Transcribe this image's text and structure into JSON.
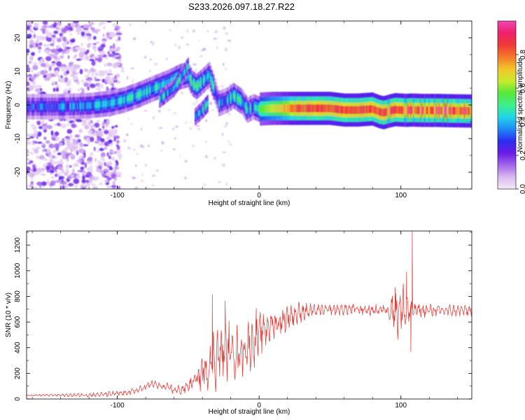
{
  "title": "S233.2026.097.18.27.R22",
  "chart_data": [
    {
      "type": "heatmap",
      "name": "spectrogram",
      "xlabel": "Height of straight line (km)",
      "ylabel": "Frequency (Hz)",
      "xlim": [
        -164,
        150
      ],
      "ylim": [
        -25,
        25
      ],
      "xticks": [
        -100,
        0,
        100
      ],
      "xtick_labels": [
        "-100",
        "0",
        "100"
      ],
      "yticks": [
        -20,
        -10,
        0,
        10,
        20
      ],
      "ytick_labels": [
        "-20",
        "-10",
        "0",
        "10",
        "20"
      ],
      "colorbar": {
        "label": "Normalized spectral amplitude",
        "range": [
          0,
          1
        ],
        "ticks": [
          0.0,
          0.2,
          0.4,
          0.6,
          0.8
        ],
        "tick_labels": [
          "0.0",
          "0.2",
          "0.4",
          "0.6",
          "0.8"
        ],
        "colors": [
          "#f4eaf7",
          "#d9b8f0",
          "#a264ec",
          "#6a1ce8",
          "#2a2df0",
          "#1e8af8",
          "#22d6e8",
          "#3df08a",
          "#58e83a",
          "#c8ea2c",
          "#f4c52a",
          "#f47a2c",
          "#f03a36",
          "#f0206a",
          "#f046b4"
        ]
      },
      "ridge": {
        "description": "dominant frequency track vs height",
        "x": [
          -162,
          -140,
          -120,
          -105,
          -95,
          -85,
          -75,
          -65,
          -55,
          -50,
          -47,
          -44,
          -40,
          -35,
          -28,
          -22,
          -18,
          -12,
          -8,
          -4,
          0,
          10,
          20,
          30,
          40,
          50,
          60,
          70,
          80,
          85,
          88,
          92,
          96,
          100,
          104,
          108,
          115,
          125,
          135,
          150
        ],
        "y": [
          -0.5,
          -0.5,
          -0.2,
          0.5,
          1.5,
          3.0,
          4.8,
          6.5,
          8.5,
          9.0,
          6.5,
          5.5,
          7.0,
          9.0,
          0.5,
          1.5,
          2.8,
          1.0,
          -1.5,
          -0.5,
          -1.2,
          -1.0,
          -1.0,
          -1.0,
          -1.0,
          -1.0,
          -1.5,
          -1.5,
          -1.2,
          -2.0,
          -2.3,
          -1.8,
          -1.4,
          -1.5,
          -1.6,
          -1.5,
          -1.6,
          -1.6,
          -1.7,
          -1.8
        ]
      },
      "secondary_branches": [
        {
          "x": [
            -70,
            -60,
            -50
          ],
          "y": [
            1.8,
            5.0,
            11.5
          ]
        },
        {
          "x": [
            -45,
            -40,
            -36
          ],
          "y": [
            -3.5,
            -1.5,
            0.5
          ]
        }
      ]
    },
    {
      "type": "line",
      "name": "snr",
      "xlabel": "Height of straight line (km)",
      "ylabel": "SNR (10 * v/v)",
      "xlim": [
        -164,
        150
      ],
      "ylim": [
        0,
        1310
      ],
      "xticks": [
        -100,
        0,
        100
      ],
      "xtick_labels": [
        "-100",
        "0",
        "100"
      ],
      "yticks": [
        0,
        200,
        400,
        600,
        800,
        1000,
        1200
      ],
      "ytick_labels": [
        "0",
        "200",
        "400",
        "600",
        "800",
        "1000",
        "1200"
      ],
      "line_color": "#e8302c",
      "envelope": {
        "x": [
          -164,
          -150,
          -130,
          -110,
          -95,
          -85,
          -80,
          -75,
          -70,
          -65,
          -60,
          -55,
          -50,
          -45,
          -40,
          -35,
          -30,
          -25,
          -20,
          -15,
          -10,
          -5,
          0,
          5,
          10,
          15,
          20,
          25,
          30,
          40,
          50,
          60,
          70,
          80,
          90,
          100,
          105,
          110,
          120,
          130,
          140,
          150
        ],
        "y": [
          30,
          30,
          30,
          35,
          45,
          70,
          95,
          120,
          100,
          90,
          70,
          70,
          100,
          150,
          200,
          280,
          330,
          380,
          380,
          360,
          390,
          430,
          490,
          560,
          580,
          600,
          640,
          660,
          680,
          690,
          695,
          700,
          700,
          690,
          700,
          690,
          690,
          690,
          690,
          690,
          690,
          690
        ]
      },
      "noise_amplitude": {
        "x": [
          -164,
          -85,
          -60,
          -45,
          -35,
          -25,
          -10,
          0,
          20,
          40,
          90,
          95,
          100,
          104,
          108,
          115,
          150
        ],
        "y": [
          5,
          30,
          40,
          60,
          300,
          250,
          220,
          200,
          120,
          50,
          50,
          200,
          300,
          200,
          60,
          55,
          50
        ]
      },
      "spikes": [
        {
          "x": -33,
          "y": 815
        },
        {
          "x": -24,
          "y": 765
        },
        {
          "x": -2,
          "y": 705
        },
        {
          "x": 96,
          "y": 870
        },
        {
          "x": 104,
          "y": 990
        },
        {
          "x": 108,
          "y": 1305
        },
        {
          "x": 107,
          "y": 370
        }
      ]
    }
  ]
}
